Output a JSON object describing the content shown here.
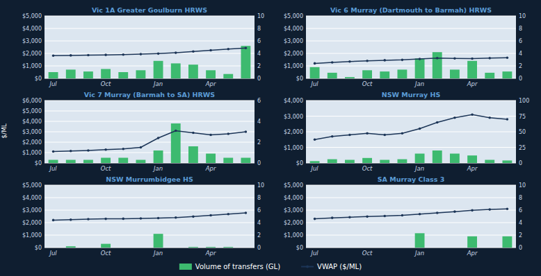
{
  "chart_data": [
    {
      "type": "bar",
      "title": "Vic 1A Greater Goulburn HRWS",
      "ylabel": "$/ML",
      "legend": "bottom",
      "grid": true,
      "categories": [
        "Jul",
        null,
        null,
        "Oct",
        null,
        null,
        "Jan",
        null,
        null,
        "Apr",
        null,
        null
      ],
      "series": [
        {
          "name": "Volume of transfers (GL)",
          "type": "bar",
          "axis": "y2",
          "color": "#3dba6f",
          "values": [
            1.0,
            1.4,
            1.1,
            1.5,
            1.0,
            1.3,
            2.8,
            2.4,
            2.2,
            1.3,
            0.7,
            5.2
          ]
        },
        {
          "name": "VWAP ($/ML)",
          "type": "line",
          "marker": "circle",
          "color": "#1c3557",
          "values": [
            1820,
            1840,
            1860,
            1880,
            1900,
            1940,
            1980,
            2050,
            2150,
            2250,
            2350,
            2430
          ]
        }
      ],
      "ylim": [
        0,
        5000
      ],
      "yticks": [
        {
          "value": 0,
          "label": "$0"
        },
        {
          "value": 1000,
          "label": "$1,000"
        },
        {
          "value": 2000,
          "label": "$2,000"
        },
        {
          "value": 3000,
          "label": "$3,000"
        },
        {
          "value": 4000,
          "label": "$4,000"
        },
        {
          "value": 5000,
          "label": "$5,000"
        }
      ],
      "y2lim": [
        0,
        10
      ],
      "y2ticks": [
        0,
        2,
        4,
        6,
        8,
        10
      ]
    },
    {
      "type": "bar",
      "title": "Vic 6 Murray (Dartmouth to Barmah) HRWS",
      "grid": true,
      "categories": [
        "Jul",
        null,
        null,
        "Oct",
        null,
        null,
        "Jan",
        null,
        null,
        "Apr",
        null,
        null
      ],
      "series": [
        {
          "type": "bar",
          "axis": "y2",
          "color": "#3dba6f",
          "values": [
            1.8,
            0.9,
            0.2,
            1.3,
            1.1,
            1.4,
            3.2,
            4.2,
            1.4,
            2.8,
            0.9,
            1.1
          ]
        },
        {
          "type": "line",
          "marker": "circle",
          "color": "#1c3557",
          "values": [
            1200,
            1280,
            1350,
            1400,
            1450,
            1480,
            1550,
            1620,
            1600,
            1580,
            1620,
            1650
          ]
        }
      ],
      "ylim": [
        0,
        5000
      ],
      "yticks": [
        {
          "value": 0,
          "label": "$0"
        },
        {
          "value": 1000,
          "label": "$1,000"
        },
        {
          "value": 2000,
          "label": "$2,000"
        },
        {
          "value": 3000,
          "label": "$3,000"
        },
        {
          "value": 4000,
          "label": "$4,000"
        },
        {
          "value": 5000,
          "label": "$5,000"
        }
      ],
      "y2lim": [
        0,
        10
      ],
      "y2ticks": [
        0,
        2,
        4,
        6,
        8,
        10
      ]
    },
    {
      "type": "bar",
      "title": "Vic 7 Murray (Barmah to SA) HRWS",
      "grid": true,
      "categories": [
        "Jul",
        null,
        null,
        "Oct",
        null,
        null,
        "Jan",
        null,
        null,
        "Apr",
        null,
        null
      ],
      "series": [
        {
          "type": "bar",
          "axis": "y2",
          "color": "#3dba6f",
          "values": [
            0.3,
            0.3,
            0.3,
            0.5,
            0.5,
            0.3,
            1.2,
            3.8,
            1.6,
            0.9,
            0.5,
            0.5
          ]
        },
        {
          "type": "line",
          "marker": "circle",
          "color": "#1c3557",
          "values": [
            1100,
            1150,
            1200,
            1280,
            1350,
            1500,
            2400,
            3100,
            2900,
            2700,
            2800,
            3000
          ]
        }
      ],
      "ylim": [
        0,
        6000
      ],
      "yticks": [
        {
          "value": 0,
          "label": "$0"
        },
        {
          "value": 1000,
          "label": "$1,000"
        },
        {
          "value": 2000,
          "label": "$2,000"
        },
        {
          "value": 3000,
          "label": "$3,000"
        },
        {
          "value": 4000,
          "label": "$4,000"
        },
        {
          "value": 5000,
          "label": "$5,000"
        },
        {
          "value": 6000,
          "label": "$6,000"
        }
      ],
      "y2lim": [
        0,
        6
      ],
      "y2ticks": [
        0,
        2,
        4,
        6
      ]
    },
    {
      "type": "bar",
      "title": "NSW Murray HS",
      "grid": true,
      "categories": [
        "Jul",
        null,
        null,
        "Oct",
        null,
        null,
        "Jan",
        null,
        null,
        "Apr",
        null,
        null
      ],
      "series": [
        {
          "type": "bar",
          "axis": "y2",
          "color": "#3dba6f",
          "values": [
            3,
            6,
            5,
            8,
            5,
            6,
            15,
            20,
            15,
            12,
            5,
            4
          ]
        },
        {
          "type": "line",
          "marker": "circle",
          "color": "#1c3557",
          "values": [
            1500,
            1700,
            1800,
            1900,
            1800,
            1900,
            2200,
            2600,
            2900,
            3100,
            2900,
            2800
          ]
        }
      ],
      "ylim": [
        0,
        4000
      ],
      "yticks": [
        {
          "value": 0,
          "label": "$0"
        },
        {
          "value": 1000,
          "label": "$1,000"
        },
        {
          "value": 2000,
          "label": "$2,000"
        },
        {
          "value": 3000,
          "label": "$3,000"
        },
        {
          "value": 4000,
          "label": "$4,000"
        }
      ],
      "y2lim": [
        0,
        100
      ],
      "y2ticks": [
        0,
        25,
        50,
        75,
        100
      ]
    },
    {
      "type": "bar",
      "title": "NSW Murrumbidgee HS",
      "grid": true,
      "categories": [
        "Jul",
        null,
        null,
        "Oct",
        null,
        null,
        "Jan",
        null,
        null,
        "Apr",
        null,
        null
      ],
      "series": [
        {
          "type": "bar",
          "axis": "y2",
          "color": "#3dba6f",
          "values": [
            0.0,
            0.2,
            0.0,
            0.6,
            0.0,
            0.0,
            2.2,
            0.0,
            0.1,
            0.1,
            0.1,
            0.0
          ]
        },
        {
          "type": "line",
          "marker": "circle",
          "color": "#1c3557",
          "values": [
            2200,
            2230,
            2280,
            2300,
            2310,
            2330,
            2360,
            2400,
            2480,
            2580,
            2680,
            2780
          ]
        }
      ],
      "ylim": [
        0,
        5000
      ],
      "yticks": [
        {
          "value": 0,
          "label": "$0"
        },
        {
          "value": 1000,
          "label": "$1,000"
        },
        {
          "value": 2000,
          "label": "$2,000"
        },
        {
          "value": 3000,
          "label": "$3,000"
        },
        {
          "value": 4000,
          "label": "$4,000"
        },
        {
          "value": 5000,
          "label": "$5,000"
        }
      ],
      "y2lim": [
        0,
        10
      ],
      "y2ticks": [
        0,
        2,
        4,
        6,
        8,
        10
      ]
    },
    {
      "type": "bar",
      "title": "SA Murray Class 3",
      "grid": true,
      "categories": [
        "Jul",
        null,
        null,
        "Oct",
        null,
        null,
        "Jan",
        null,
        null,
        "Apr",
        null,
        null
      ],
      "series": [
        {
          "type": "bar",
          "axis": "y2",
          "color": "#3dba6f",
          "values": [
            0.0,
            0.0,
            0.0,
            0.0,
            0.0,
            0.0,
            2.3,
            0.0,
            0.0,
            1.8,
            0.0,
            1.8
          ]
        },
        {
          "type": "line",
          "marker": "circle",
          "color": "#1c3557",
          "values": [
            2300,
            2380,
            2430,
            2480,
            2530,
            2580,
            2680,
            2780,
            2880,
            2980,
            3050,
            3100
          ]
        }
      ],
      "ylim": [
        0,
        5000
      ],
      "yticks": [
        {
          "value": 0,
          "label": "$0"
        },
        {
          "value": 1000,
          "label": "$1,000"
        },
        {
          "value": 2000,
          "label": "$2,000"
        },
        {
          "value": 3000,
          "label": "$3,000"
        },
        {
          "value": 4000,
          "label": "$4,000"
        },
        {
          "value": 5000,
          "label": "$5,000"
        }
      ],
      "y2lim": [
        0,
        10
      ],
      "y2ticks": [
        0,
        2,
        4,
        6,
        8,
        10
      ]
    }
  ]
}
